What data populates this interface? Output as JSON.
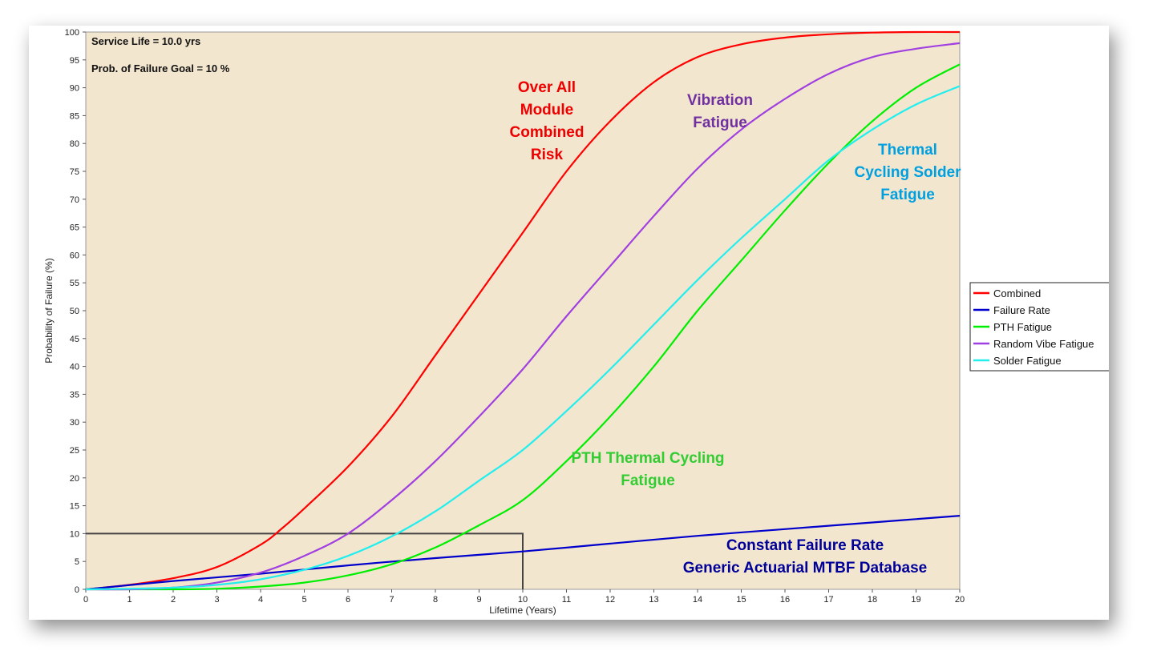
{
  "chart_data": {
    "type": "line",
    "xlabel": "Lifetime (Years)",
    "ylabel": "Probability of Failure (%)",
    "xlim": [
      0,
      20
    ],
    "ylim": [
      0,
      100
    ],
    "x_ticks": [
      0,
      1,
      2,
      3,
      4,
      5,
      6,
      7,
      8,
      9,
      10,
      11,
      12,
      13,
      14,
      15,
      16,
      17,
      18,
      19,
      20
    ],
    "y_ticks": [
      0,
      5,
      10,
      15,
      20,
      25,
      30,
      35,
      40,
      45,
      50,
      55,
      60,
      65,
      70,
      75,
      80,
      85,
      90,
      95,
      100
    ],
    "grid": false,
    "legend_position": "right",
    "info_lines": [
      "Service Life = 10.0 yrs",
      "Prob. of Failure Goal = 10 %"
    ],
    "goal_box": {
      "x": 10,
      "y": 10
    },
    "series": [
      {
        "name": "Combined",
        "color": "#ff0000",
        "x": [
          0,
          1,
          2,
          3,
          4,
          4.5,
          5,
          6,
          7,
          8,
          9,
          10,
          11,
          12,
          13,
          14,
          15,
          16,
          17,
          18,
          19,
          20
        ],
        "y": [
          0,
          0.8,
          2,
          4,
          8,
          11,
          14.5,
          22,
          31,
          42,
          53,
          64,
          75,
          84,
          91,
          95.5,
          97.8,
          99,
          99.6,
          99.9,
          100,
          100
        ]
      },
      {
        "name": "Failure Rate",
        "color": "#0000cc",
        "x": [
          0,
          2,
          4,
          6,
          8,
          10,
          12,
          14,
          16,
          18,
          20
        ],
        "y": [
          0,
          1.5,
          2.8,
          4.3,
          5.6,
          6.8,
          8.2,
          9.6,
          10.8,
          12,
          13.2
        ]
      },
      {
        "name": "PTH Fatigue",
        "color": "#00ee00",
        "x": [
          0,
          2,
          3,
          4,
          5,
          6,
          7,
          8,
          9,
          10,
          11,
          12,
          13,
          14,
          15,
          16,
          17,
          18,
          19,
          20
        ],
        "y": [
          0,
          0,
          0.1,
          0.5,
          1.2,
          2.5,
          4.5,
          7.5,
          11.5,
          16,
          23,
          31,
          40,
          50,
          59,
          68,
          76.5,
          84,
          90,
          94.2
        ]
      },
      {
        "name": "Random Vibe Fatigue",
        "color": "#a040e0",
        "x": [
          0,
          1,
          2,
          3,
          4,
          5,
          6,
          7,
          8,
          9,
          10,
          11,
          12,
          13,
          14,
          15,
          16,
          17,
          18,
          19,
          20
        ],
        "y": [
          0,
          0,
          0.3,
          1.2,
          3,
          6,
          10,
          16,
          23,
          31,
          39.5,
          49,
          58,
          67,
          75.5,
          82.5,
          88,
          92.5,
          95.5,
          97,
          98
        ]
      },
      {
        "name": "Solder Fatigue",
        "color": "#22eeee",
        "x": [
          0,
          1,
          2,
          3,
          4,
          5,
          6,
          7,
          8,
          9,
          10,
          11,
          12,
          13,
          14,
          15,
          16,
          17,
          18,
          19,
          20
        ],
        "y": [
          0,
          0.1,
          0.3,
          0.8,
          1.8,
          3.5,
          6,
          9.5,
          14,
          19.5,
          25,
          32,
          39.5,
          47.5,
          55.5,
          63,
          70,
          77,
          82.5,
          87,
          90.3
        ]
      }
    ],
    "annotations": [
      {
        "lines": [
          "Over All",
          "Module",
          "Combined",
          "Risk"
        ],
        "color": "#ee0000"
      },
      {
        "lines": [
          "Vibration",
          "Fatigue"
        ],
        "color": "#7030a0"
      },
      {
        "lines": [
          "Thermal",
          "Cycling Solder",
          "Fatigue"
        ],
        "color": "#00a0e0"
      },
      {
        "lines": [
          "PTH Thermal Cycling",
          "Fatigue"
        ],
        "color": "#33cc33"
      },
      {
        "lines": [
          "Constant Failure Rate",
          "Generic Actuarial MTBF Database"
        ],
        "color": "#000099"
      }
    ]
  }
}
